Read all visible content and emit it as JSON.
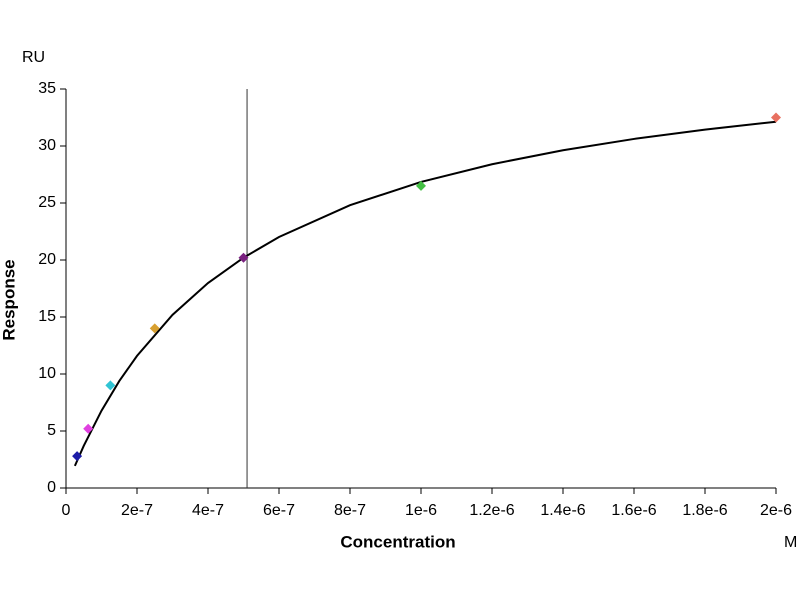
{
  "chart_data": {
    "type": "scatter",
    "y_unit": "RU",
    "x_unit": "M",
    "xlabel": "Concentration",
    "ylabel": "Response",
    "xlim": [
      0,
      2e-06
    ],
    "ylim": [
      0,
      35
    ],
    "xticks": [
      0,
      {
        "value": 2e-07,
        "label": "2e-7"
      },
      {
        "value": 4e-07,
        "label": "4e-7"
      },
      {
        "value": 6e-07,
        "label": "6e-7"
      },
      {
        "value": 8e-07,
        "label": "8e-7"
      },
      {
        "value": 1e-06,
        "label": "1e-6"
      },
      {
        "value": 1.2e-06,
        "label": "1.2e-6"
      },
      {
        "value": 1.4e-06,
        "label": "1.4e-6"
      },
      {
        "value": 1.6e-06,
        "label": "1.6e-6"
      },
      {
        "value": 1.8e-06,
        "label": "1.8e-6"
      },
      {
        "value": 2e-06,
        "label": "2e-6"
      }
    ],
    "yticks": [
      0,
      5,
      10,
      15,
      20,
      25,
      30,
      35
    ],
    "points": {
      "x": [
        3.125e-08,
        6.25e-08,
        1.25e-07,
        2.5e-07,
        5e-07,
        1e-06,
        2e-06
      ],
      "values": [
        2.8,
        5.2,
        9.0,
        14.0,
        20.2,
        26.5,
        32.5
      ],
      "colors": [
        "#1c1ca8",
        "#e040e0",
        "#30c4d4",
        "#d8a030",
        "#7a2080",
        "#44c044",
        "#e87060"
      ]
    },
    "fit": {
      "color": "#000000",
      "x": [
        2.5e-08,
        5e-08,
        1e-07,
        1.5e-07,
        2e-07,
        3e-07,
        4e-07,
        5e-07,
        6e-07,
        8e-07,
        1e-06,
        1.2e-06,
        1.4e-06,
        1.6e-06,
        1.8e-06,
        2e-06
      ],
      "values": [
        1.94,
        3.7,
        6.78,
        9.38,
        11.59,
        15.19,
        17.98,
        20.2,
        22.02,
        24.81,
        26.85,
        28.4,
        29.63,
        30.62,
        31.44,
        32.13
      ]
    },
    "cursor_x": 5.1e-07
  }
}
